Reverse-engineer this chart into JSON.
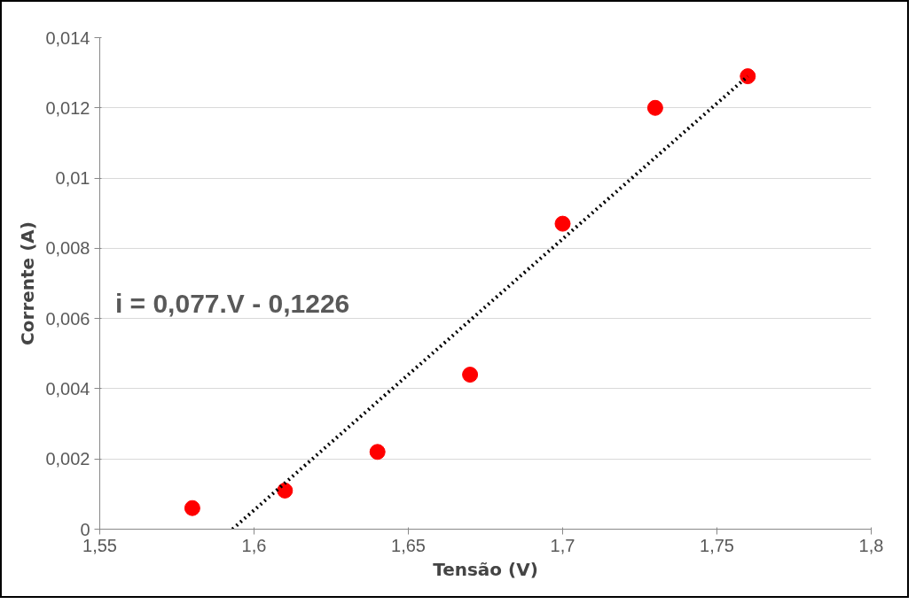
{
  "chart_data": {
    "type": "scatter",
    "xlabel": "Tensão (V)",
    "ylabel": "Corrente (A)",
    "annotations": [
      "i = 0,077.V - 0,1226"
    ],
    "x": [
      1.58,
      1.61,
      1.64,
      1.67,
      1.7,
      1.73,
      1.76
    ],
    "series": [
      {
        "marker": "circle",
        "color": "#ff0000",
        "values": [
          0.0006,
          0.0011,
          0.0022,
          0.0044,
          0.0087,
          0.012,
          0.0129
        ]
      },
      {
        "type": "line",
        "color": "#000000",
        "line_style": "dotted",
        "x": [
          1.593,
          1.76
        ],
        "values": [
          0,
          0.0129
        ]
      }
    ],
    "xlim": [
      1.55,
      1.8
    ],
    "xticks": [
      {
        "value": 1.55,
        "label": "1,55"
      },
      {
        "value": 1.6,
        "label": "1,6"
      },
      {
        "value": 1.65,
        "label": "1,65"
      },
      {
        "value": 1.7,
        "label": "1,7"
      },
      {
        "value": 1.75,
        "label": "1,75"
      },
      {
        "value": 1.8,
        "label": "1,8"
      }
    ],
    "ylim": [
      0,
      0.014
    ],
    "yticks": [
      0,
      {
        "value": 0.002,
        "label": "0,002"
      },
      {
        "value": 0.004,
        "label": "0,004"
      },
      {
        "value": 0.006,
        "label": "0,006"
      },
      {
        "value": 0.008,
        "label": "0,008"
      },
      {
        "value": 0.01,
        "label": "0,01"
      },
      {
        "value": 0.012,
        "label": "0,012"
      },
      {
        "value": 0.014,
        "label": "0,014"
      }
    ],
    "grid": "y"
  }
}
